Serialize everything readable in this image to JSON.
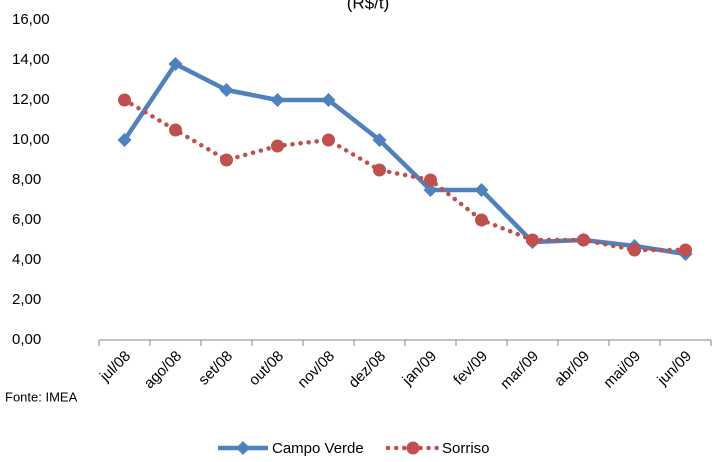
{
  "chart_data": {
    "type": "line",
    "title": "(R$/t)",
    "categories": [
      "jul/08",
      "ago/08",
      "set/08",
      "out/08",
      "nov/08",
      "dez/08",
      "jan/09",
      "fev/09",
      "mar/09",
      "abr/09",
      "mai/09",
      "jun/09"
    ],
    "series": [
      {
        "name": "Campo Verde",
        "color": "#4f81bd",
        "marker": "diamond",
        "values": [
          10,
          13.8,
          12.5,
          12,
          12,
          10,
          7.5,
          7.5,
          4.9,
          5,
          4.7,
          4.3
        ]
      },
      {
        "name": "Sorriso",
        "color": "#c0504d",
        "marker": "circle",
        "dashed": true,
        "values": [
          12,
          10.5,
          9,
          9.7,
          10,
          8.5,
          8,
          6,
          5,
          5,
          4.5,
          4.5
        ]
      }
    ],
    "ylim": [
      0,
      16
    ],
    "yticks": [
      {
        "value": 0,
        "label": "0,00"
      },
      {
        "value": 2,
        "label": "2,00"
      },
      {
        "value": 4,
        "label": "4,00"
      },
      {
        "value": 6,
        "label": "6,00"
      },
      {
        "value": 8,
        "label": "8,00"
      },
      {
        "value": 10,
        "label": "10,00"
      },
      {
        "value": 12,
        "label": "12,00"
      },
      {
        "value": 14,
        "label": "14,00"
      },
      {
        "value": 16,
        "label": "16,00"
      }
    ],
    "source": "Fonte: IMEA",
    "legend": "bottom"
  }
}
